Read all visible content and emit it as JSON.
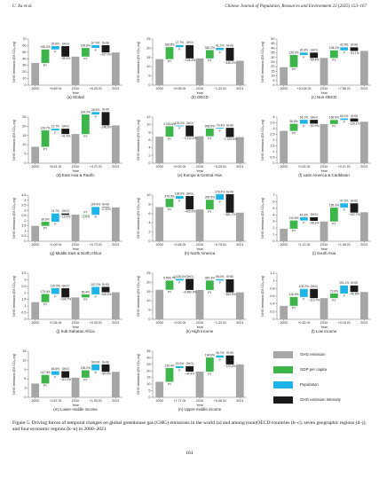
{
  "header": {
    "author": "C. Xu et al.",
    "journal": "Chinese Journal of Population, Resources and Environment 23 (2025) 153–167"
  },
  "common": {
    "y_label": "GHG emission (Gt CO₂-eq)",
    "x_label": "Year",
    "years": [
      "2000",
      "2010",
      "2021"
    ],
    "step_names": [
      "PY",
      "P",
      "GHGI"
    ],
    "colors": {
      "ghg": "#a6a6a6",
      "py": "#3db54a",
      "p": "#1eb4e8",
      "ghgi": "#1a1a1a"
    }
  },
  "chart_data": [
    {
      "type": "waterfall",
      "caption": "(a) Global",
      "ylim": [
        0,
        70
      ],
      "yticks": [
        0,
        10,
        20,
        30,
        40,
        50,
        60,
        70
      ],
      "ghg": [
        33.6,
        43.3,
        49.6
      ],
      "steps": [
        [
          20.6,
          5.0,
          -15.9
        ],
        [
          13.1,
          4.2,
          -11.0
        ]
      ],
      "pct_labels": [
        [
          "106.2%",
          "25.6%",
          "−95.3%"
        ],
        [
          "209.6%",
          "67.3%",
          "−207.4%"
        ]
      ],
      "deltas": [
        "+9.69 Gt",
        "+6.25 Gt"
      ]
    },
    {
      "type": "waterfall",
      "caption": "(b) OECD",
      "ylim": [
        0,
        25
      ],
      "yticks": [
        0,
        5,
        10,
        15,
        20,
        25
      ],
      "ghg": [
        14.1,
        14.5,
        13.2
      ],
      "steps": [
        [
          6.5,
          1.1,
          -7.2
        ],
        [
          4.5,
          1.2,
          -7.0
        ]
      ],
      "pct_labels": [
        [
          "188.6%",
          "17.7%",
          "−106.3%"
        ],
        [
          "340.2%",
          "41.7%",
          "−346.2%"
        ]
      ],
      "deltas": [
        "+0.36 Gt",
        "−1.33 Gt"
      ]
    },
    {
      "type": "waterfall",
      "caption": "(c) Non-OECD",
      "ylim": [
        0,
        50
      ],
      "yticks": [
        0,
        5,
        10,
        15,
        20,
        25,
        30,
        35,
        40,
        45,
        50
      ],
      "ghg": [
        19.5,
        29.5,
        37.1
      ],
      "steps": [
        [
          13.2,
          2.6,
          -5.8
        ],
        [
          8.2,
          3.3,
          -3.9
        ]
      ],
      "pct_labels": [
        [
          "135.2%",
          "26.3%",
          "−59.4%"
        ],
        [
          "108.2%",
          "42.9%",
          "−51.1%"
        ]
      ],
      "deltas": [
        "+10.05 Gt",
        "+7.58 Gt"
      ]
    },
    {
      "type": "waterfall",
      "caption": "(d) East Asia & Pacific",
      "ylim": [
        0,
        25
      ],
      "yticks": [
        0,
        5,
        10,
        15,
        20,
        25
      ],
      "ghg": [
        8.9,
        15.8,
        20.5
      ],
      "steps": [
        [
          8.9,
          0.9,
          -2.9
        ],
        [
          10.6,
          1.3,
          -7.2
        ]
      ],
      "pct_labels": [
        [
          "128.7%",
          "12.7%",
          "−41.4%"
        ],
        [
          "224.2%",
          "28.5%",
          "−148.6%"
        ]
      ],
      "deltas": [
        "+6.91 Gt",
        "+4.71 Gt"
      ]
    },
    {
      "type": "waterfall",
      "caption": "(e) Europe & Central Asia",
      "ylim": [
        0,
        12
      ],
      "yticks": [
        0,
        2,
        4,
        6,
        8,
        10,
        12
      ],
      "ghg": [
        6.9,
        7.0,
        6.8
      ],
      "steps": [
        [
          2.7,
          0.2,
          -2.8
        ],
        [
          2.0,
          0.2,
          -2.4
        ]
      ],
      "pct_labels": [
        [
          "3 033.6%",
          "178.0%",
          "−3 112.2%"
        ],
        [
          "993.5%",
          "−70.4%",
          "−1 023.9%"
        ]
      ],
      "deltas": [
        "+0.09 Gt",
        "−0.20 Gt"
      ]
    },
    {
      "type": "waterfall",
      "caption": "(f) Latin America & Caribbean",
      "ylim": [
        0,
        4.0
      ],
      "yticks": [
        0,
        0.5,
        1.0,
        1.5,
        2.0,
        2.5,
        3.0,
        3.5,
        4.0
      ],
      "ghg": [
        2.8,
        3.4,
        3.6
      ],
      "steps": [
        [
          0.62,
          0.34,
          -0.33
        ],
        [
          0.35,
          0.13,
          -0.27
        ]
      ],
      "pct_labels": [
        [
          "98.8%",
          "54.1%",
          "−52.9%"
        ],
        [
          "166.5%",
          "60.1%",
          "−126.1%"
        ]
      ],
      "deltas": [
        "+0.63 Gt",
        "+0.21 Gt"
      ]
    },
    {
      "type": "waterfall",
      "caption": "(g) Middle East & North Africa",
      "ylim": [
        0,
        4.5
      ],
      "yticks": [
        0,
        0.5,
        1.0,
        1.5,
        2.0,
        2.5,
        3.0,
        3.5,
        4.0,
        4.5
      ],
      "ghg": [
        1.5,
        2.6,
        3.3
      ],
      "steps": [
        [
          0.4,
          0.81,
          -0.14
        ],
        [
          -0.02,
          0.77,
          -0.02
        ]
      ],
      "pct_labels": [
        [
          "36.6%",
          "74.7%",
          "−13.0%"
        ],
        [
          "−2.6%",
          "104.9%",
          "−2.32%"
        ]
      ],
      "deltas": [
        "+1.09 Gt",
        "+0.73 Gt"
      ]
    },
    {
      "type": "waterfall",
      "caption": "(h) North America",
      "ylim": [
        0,
        10
      ],
      "yticks": [
        0,
        2,
        4,
        6,
        8,
        10
      ],
      "ghg": [
        7.4,
        6.9,
        6.2
      ],
      "steps": [
        [
          1.8,
          0.6,
          -2.9
        ],
        [
          2.1,
          1.2,
          -4.0
        ]
      ],
      "pct_labels": [
        [
          "376.9%",
          "128.6%",
          "−405.5%"
        ],
        [
          "305.5%",
          "176.2%",
          "−381.7%"
        ]
      ],
      "deltas": [
        "−0.48 Gt",
        "−0.70 Gt"
      ]
    },
    {
      "type": "waterfall",
      "caption": "(i) South Asia",
      "ylim": [
        0,
        7
      ],
      "yticks": [
        0,
        1,
        2,
        3,
        4,
        5,
        6,
        7
      ],
      "ghg": [
        1.9,
        3.0,
        4.4
      ],
      "steps": [
        [
          1.25,
          0.5,
          -0.55
        ],
        [
          2.1,
          0.65,
          -1.4
        ]
      ],
      "pct_labels": [
        [
          "110.9%",
          "44.3%",
          "−48.3%"
        ],
        [
          "155.3%",
          "47.3%",
          "−102.7%"
        ]
      ],
      "deltas": [
        "+1.13 Gt",
        "+1.36 Gt"
      ]
    },
    {
      "type": "waterfall",
      "caption": "(j) Sub-Saharan Africa",
      "ylim": [
        0,
        3.5
      ],
      "yticks": [
        0,
        0.5,
        1.0,
        1.5,
        2.0,
        2.5,
        3.0,
        3.5
      ],
      "ghg": [
        1.3,
        1.66,
        2.05
      ],
      "steps": [
        [
          0.62,
          0.44,
          -0.7
        ],
        [
          0.23,
          0.57,
          -0.41
        ]
      ],
      "pct_labels": [
        [
          "173.4%",
          "120.5%",
          "−194.7%"
        ],
        [
          "59.4%",
          "147.0%",
          "−106.4%"
        ]
      ],
      "deltas": [
        "+0.36 Gt",
        "+0.39 Gt"
      ]
    },
    {
      "type": "waterfall",
      "caption": "(k) High income",
      "ylim": [
        0,
        25
      ],
      "yticks": [
        0,
        5,
        10,
        15,
        20,
        25
      ],
      "ghg": [
        16.0,
        15.9,
        14.6
      ],
      "steps": [
        [
          5.0,
          0.9,
          -6.0
        ],
        [
          5.1,
          0.7,
          -7.1
        ]
      ],
      "pct_labels": [
        [
          "5 554.7%",
          "1 025.3%",
          "−6 480.0%"
        ],
        [
          "387.3%",
          "55.0%",
          "−384.9%"
        ]
      ],
      "deltas": [
        "−0.09 Gt",
        "−1.33 Gt"
      ]
    },
    {
      "type": "waterfall",
      "caption": "(l) Low income",
      "ylim": [
        0,
        1.2
      ],
      "yticks": [
        0,
        0.2,
        0.4,
        0.6,
        0.8,
        1.0,
        1.2
      ],
      "ghg": [
        0.35,
        0.55,
        0.71
      ],
      "steps": [
        [
          0.23,
          0.21,
          -0.24
        ],
        [
          0.12,
          0.21,
          -0.17
        ]
      ],
      "pct_labels": [
        [
          "116.3%",
          "103.2%",
          "−119.7%"
        ],
        [
          "73.0%",
          "131.1%",
          "−46.8%"
        ]
      ],
      "deltas": [
        "+0.20 Gt",
        "+0.16 Gt"
      ]
    },
    {
      "type": "waterfall",
      "caption": "(m) Lower-middle income",
      "ylim": [
        0,
        15
      ],
      "yticks": [
        0,
        3,
        6,
        9,
        12,
        15
      ],
      "ghg": [
        4.5,
        6.4,
        8.3
      ],
      "steps": [
        [
          2.8,
          1.2,
          -2.1
        ],
        [
          2.4,
          1.9,
          -2.4
        ]
      ],
      "pct_labels": [
        [
          "147.3%",
          "65.8%",
          "−110.3%"
        ],
        [
          "126.2%",
          "96.9%",
          "−94.0%"
        ]
      ],
      "deltas": [
        "+1.87 Gt",
        "+1.93 Gt"
      ]
    },
    {
      "type": "waterfall",
      "caption": "(n) Upper-middle income",
      "ylim": [
        0,
        35
      ],
      "yticks": [
        0,
        5,
        10,
        15,
        20,
        25,
        30,
        35
      ],
      "ghg": [
        11.8,
        19.5,
        25.0
      ],
      "steps": [
        [
          10.4,
          1.5,
          -4.2
        ],
        [
          10.7,
          1.6,
          -6.8
        ]
      ],
      "pct_labels": [
        [
          "135.4%",
          "19.0%",
          "−44.4%"
        ],
        [
          "194.8%",
          "28.7%",
          "−123.4%"
        ]
      ],
      "deltas": [
        "+7.71 Gt",
        "+5.46 Gt"
      ]
    }
  ],
  "legend": {
    "items": [
      "GHG emission",
      "GDP per capita",
      "Population",
      "GHG emission intensity"
    ]
  },
  "caption": "Figure 5. Driving forces of temporal changes on global greenhouse gas (GHG) emissions in the world (a) and among (non)OECD countries (b–c), seven geographic regions (d–j), and four economic regions (k–n) in 2000–2021",
  "page_number": "161"
}
